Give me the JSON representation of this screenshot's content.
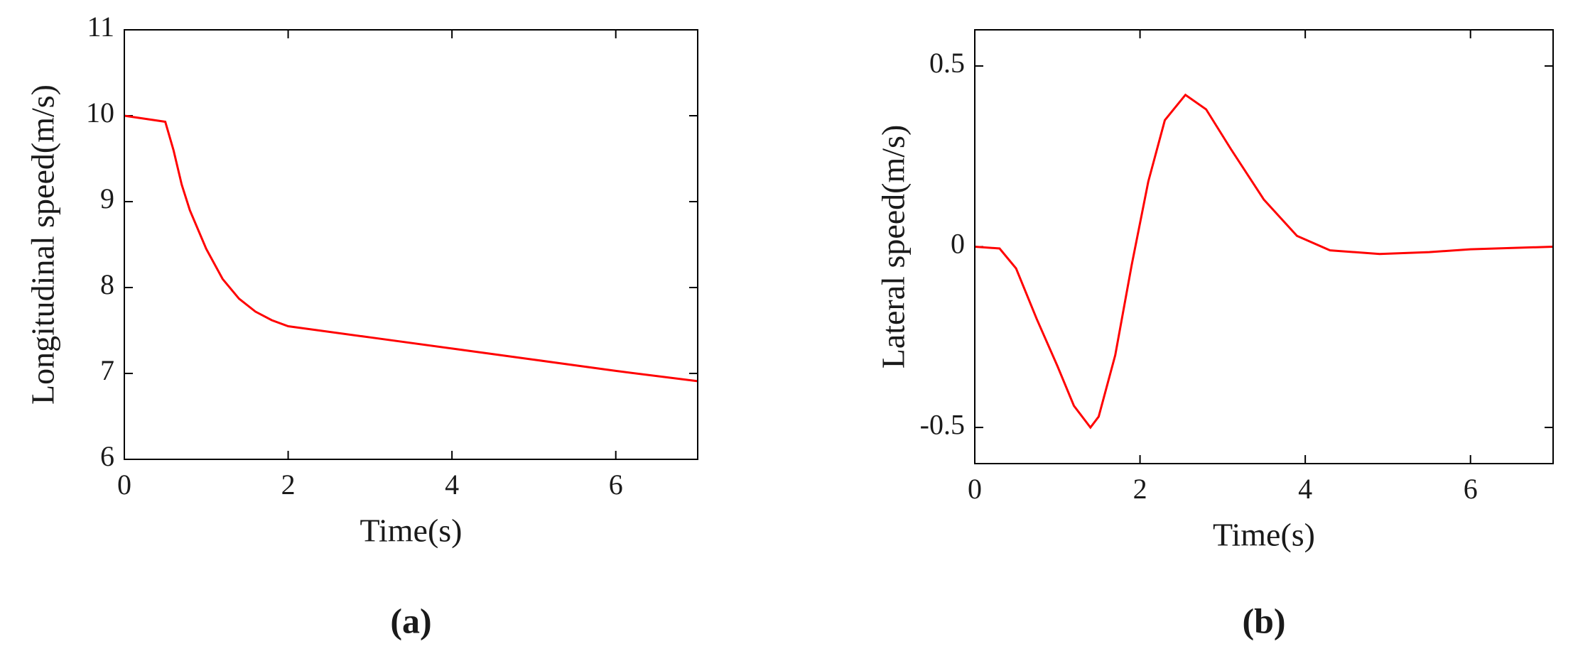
{
  "chart_data": [
    {
      "type": "line",
      "caption": "(a)",
      "xlabel": "Time(s)",
      "ylabel": "Longitudinal speed(m/s)",
      "xlim": [
        0,
        7
      ],
      "xticks": [
        0,
        2,
        4,
        6
      ],
      "ylim": [
        6,
        11
      ],
      "yticks": [
        6,
        7,
        8,
        9,
        10,
        11
      ],
      "x": [
        0,
        0.5,
        0.6,
        0.7,
        0.8,
        1.0,
        1.2,
        1.4,
        1.6,
        1.8,
        2.0,
        3.0,
        4.0,
        5.0,
        6.0,
        7.0
      ],
      "series": [
        {
          "color": "#ff0000",
          "values": [
            10,
            9.93,
            9.6,
            9.2,
            8.9,
            8.45,
            8.1,
            7.87,
            7.72,
            7.62,
            7.55,
            7.42,
            7.29,
            7.16,
            7.03,
            6.91
          ]
        }
      ]
    },
    {
      "type": "line",
      "caption": "(b)",
      "xlabel": "Time(s)",
      "ylabel": "Lateral speed(m/s)",
      "xlim": [
        0,
        7
      ],
      "xticks": [
        0,
        2,
        4,
        6
      ],
      "ylim": [
        -0.6,
        0.6
      ],
      "yticks": [
        -0.5,
        0,
        0.5
      ],
      "x": [
        0,
        0.3,
        0.5,
        0.75,
        1.0,
        1.2,
        1.4,
        1.5,
        1.7,
        1.9,
        2.1,
        2.3,
        2.55,
        2.8,
        3.1,
        3.5,
        3.9,
        4.3,
        4.9,
        5.5,
        6.0,
        7.0
      ],
      "series": [
        {
          "color": "#ff0000",
          "values": [
            0,
            -0.005,
            -0.06,
            -0.2,
            -0.33,
            -0.44,
            -0.5,
            -0.47,
            -0.3,
            -0.05,
            0.18,
            0.35,
            0.42,
            0.38,
            0.27,
            0.13,
            0.03,
            -0.01,
            -0.02,
            -0.015,
            -0.007,
            0
          ]
        }
      ]
    }
  ]
}
